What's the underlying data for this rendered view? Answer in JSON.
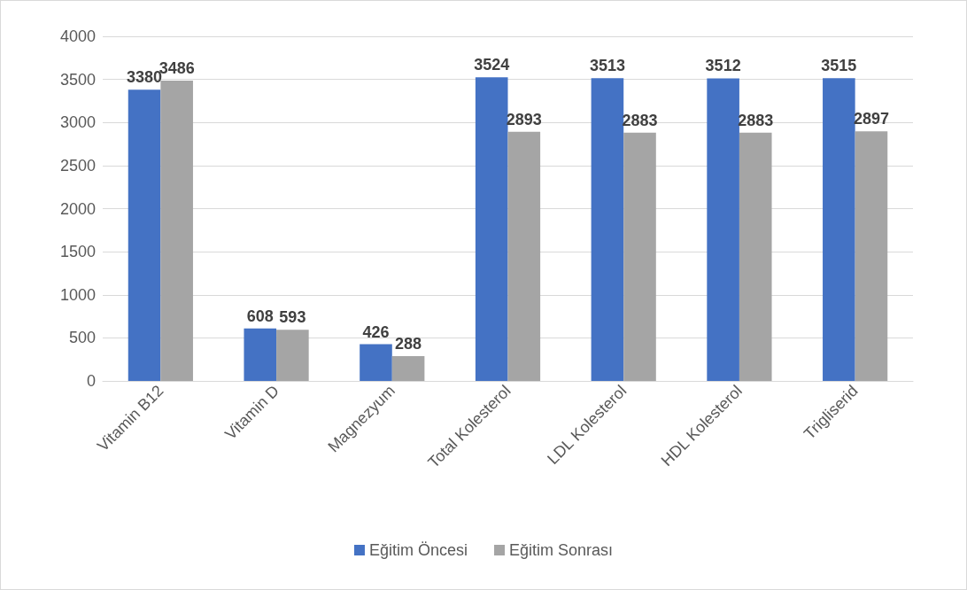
{
  "chart_data": {
    "type": "bar",
    "categories": [
      "Vitamin B12",
      "Vitamin D",
      "Magnezyum",
      "Total Kolesterol",
      "LDL Kolesterol",
      "HDL Kolesterol",
      "Trigliserid"
    ],
    "series": [
      {
        "name": "Eğitim Öncesi",
        "color": "#4472c4",
        "values": [
          3380,
          608,
          426,
          3524,
          3513,
          3512,
          3515
        ]
      },
      {
        "name": "Eğitim Sonrası",
        "color": "#a5a5a5",
        "values": [
          3486,
          593,
          288,
          2893,
          2883,
          2883,
          2897
        ]
      }
    ],
    "ylim": [
      0,
      4000
    ],
    "yticks": [
      0,
      500,
      1000,
      1500,
      2000,
      2500,
      3000,
      3500,
      4000
    ],
    "grid": "y",
    "legend": "bottom",
    "data_labels": true
  }
}
